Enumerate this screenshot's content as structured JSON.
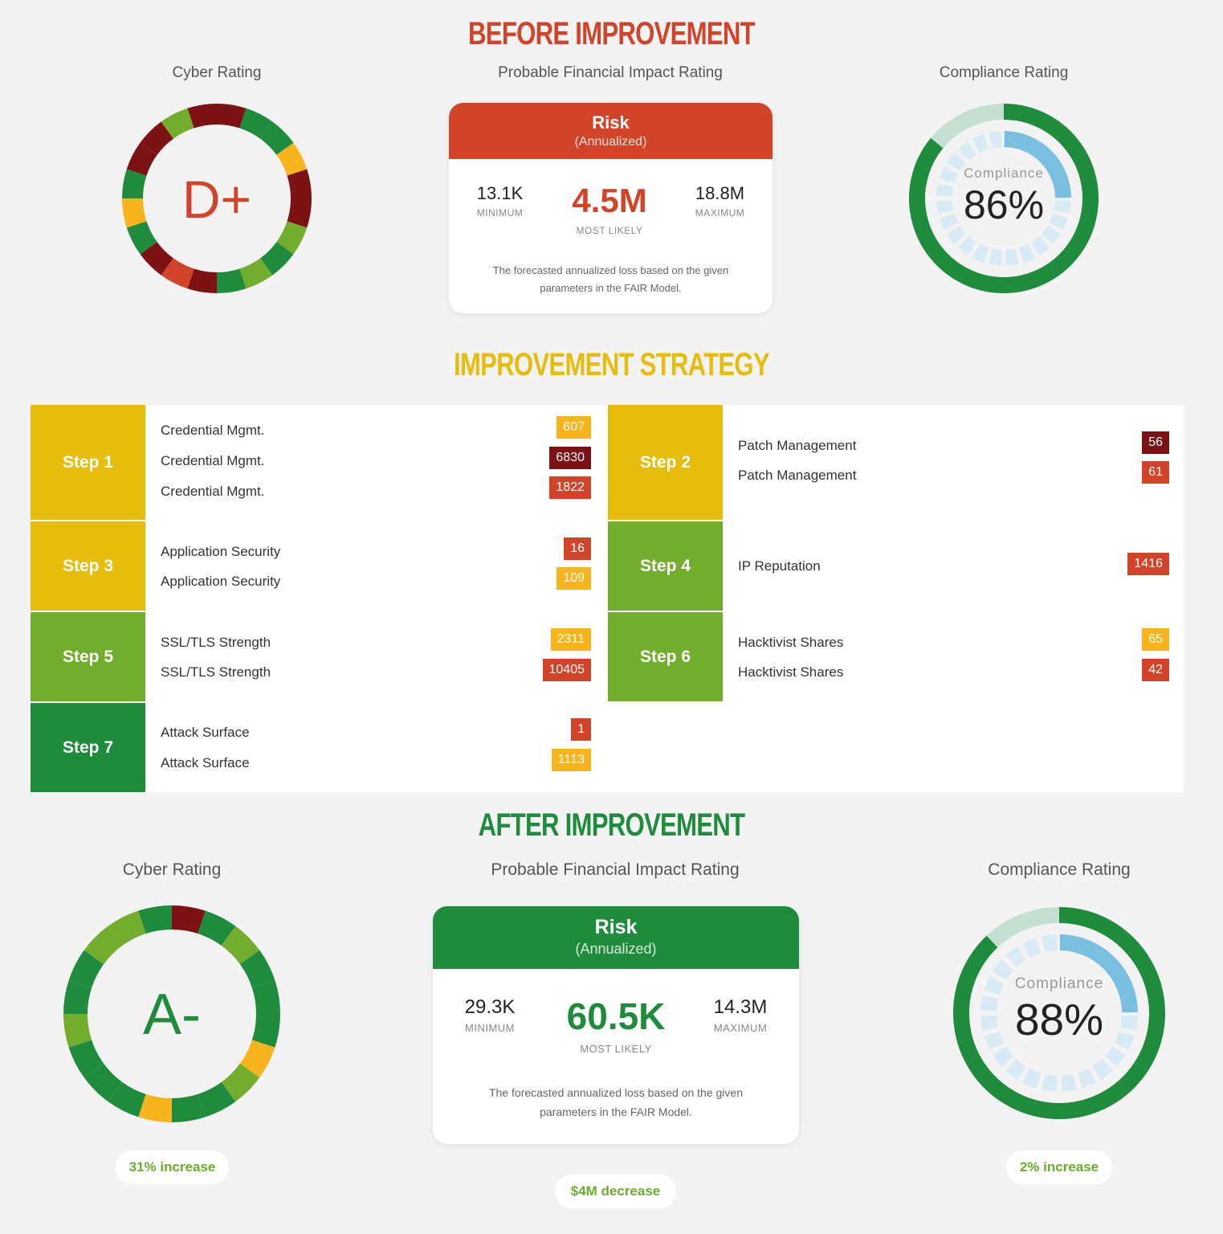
{
  "colors": {
    "red": "#d2442a",
    "darkred": "#7d1214",
    "yellow": "#e6bd0c",
    "lightgreen": "#72ad2d",
    "green": "#1e8c3c",
    "orange": "#f8b41c",
    "blue": "#7bbfe0",
    "paleblue": "#d8ebf5"
  },
  "before": {
    "title": "BEFORE IMPROVEMENT",
    "cyber_label": "Cyber Rating",
    "grade": "D+",
    "fin_label": "Probable Financial Impact Rating",
    "risk_title": "Risk",
    "risk_sub": "(Annualized)",
    "min_val": "13.1K",
    "min_lbl": "MINIMUM",
    "likely_val": "4.5M",
    "likely_lbl": "MOST LIKELY",
    "max_val": "18.8M",
    "max_lbl": "MAXIMUM",
    "note1": "The forecasted annualized loss based on the given",
    "note2": "parameters in the FAIR Model.",
    "comp_label": "Compliance Rating",
    "comp_word": "Compliance",
    "comp_pct": "86%",
    "comp_value": 0.86
  },
  "strategy": {
    "title": "IMPROVEMENT STRATEGY",
    "steps": [
      {
        "label": "Step 1",
        "items": [
          {
            "name": "Credential Mgmt.",
            "count": "607",
            "level": "orange"
          },
          {
            "name": "Credential Mgmt.",
            "count": "6830",
            "level": "darkred"
          },
          {
            "name": "Credential Mgmt.",
            "count": "1822",
            "level": "red"
          }
        ]
      },
      {
        "label": "Step 2",
        "items": [
          {
            "name": "Patch Management",
            "count": "56",
            "level": "darkred"
          },
          {
            "name": "Patch Management",
            "count": "61",
            "level": "red"
          }
        ]
      },
      {
        "label": "Step 3",
        "items": [
          {
            "name": "Application Security",
            "count": "16",
            "level": "red"
          },
          {
            "name": "Application Security",
            "count": "109",
            "level": "orange"
          }
        ]
      },
      {
        "label": "Step 4",
        "items": [
          {
            "name": "IP Reputation",
            "count": "1416",
            "level": "red"
          }
        ]
      },
      {
        "label": "Step 5",
        "items": [
          {
            "name": "SSL/TLS Strength",
            "count": "2311",
            "level": "orange"
          },
          {
            "name": "SSL/TLS Strength",
            "count": "10405",
            "level": "red"
          }
        ]
      },
      {
        "label": "Step 6",
        "items": [
          {
            "name": "Hacktivist Shares",
            "count": "65",
            "level": "orange"
          },
          {
            "name": "Hacktivist Shares",
            "count": "42",
            "level": "red"
          }
        ]
      },
      {
        "label": "Step 7",
        "items": [
          {
            "name": "Attack Surface",
            "count": "1",
            "level": "red"
          },
          {
            "name": "Attack Surface",
            "count": "1113",
            "level": "orange"
          }
        ]
      }
    ]
  },
  "after": {
    "title": "AFTER IMPROVEMENT",
    "cyber_label": "Cyber Rating",
    "grade": "A-",
    "cyber_change": "31% increase",
    "fin_label": "Probable Financial Impact Rating",
    "risk_title": "Risk",
    "risk_sub": "(Annualized)",
    "min_val": "29.3K",
    "min_lbl": "MINIMUM",
    "likely_val": "60.5K",
    "likely_lbl": "MOST LIKELY",
    "max_val": "14.3M",
    "max_lbl": "MAXIMUM",
    "note1": "The forecasted annualized loss based on the given",
    "note2": "parameters in the FAIR Model.",
    "fin_change": "$4M decrease",
    "comp_label": "Compliance Rating",
    "comp_word": "Compliance",
    "comp_pct": "88%",
    "comp_value": 0.88,
    "comp_change": "2% increase"
  },
  "donut_before": [
    "darkred",
    "green",
    "green",
    "orange",
    "darkred",
    "darkred",
    "lightgreen",
    "green",
    "lightgreen",
    "green",
    "darkred",
    "red",
    "darkred",
    "green",
    "orange",
    "green",
    "darkred",
    "darkred",
    "lightgreen",
    "darkred"
  ],
  "donut_after": [
    "darkred",
    "green",
    "lightgreen",
    "green",
    "green",
    "green",
    "orange",
    "lightgreen",
    "green",
    "green",
    "orange",
    "green",
    "green",
    "green",
    "lightgreen",
    "green",
    "green",
    "lightgreen",
    "lightgreen",
    "green"
  ]
}
